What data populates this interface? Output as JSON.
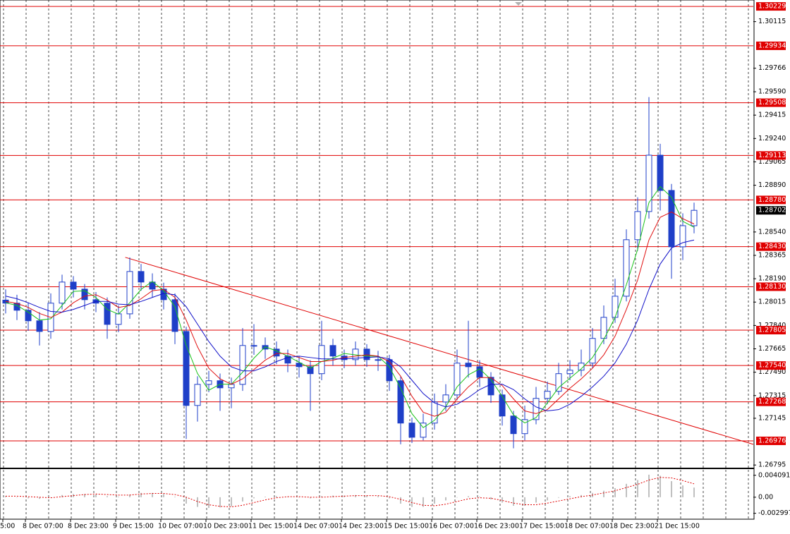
{
  "chart_data": {
    "type": "candlestick",
    "categories": [
      "5:00",
      null,
      "8 Dec 07:00",
      null,
      null,
      null,
      "8 Dec 23:00",
      null,
      null,
      null,
      "9 Dec 15:00",
      null,
      null,
      null,
      "10 Dec 07:00",
      null,
      null,
      null,
      "10 Dec 23:00",
      null,
      null,
      null,
      "11 Dec 15:00",
      null,
      null,
      null,
      "14 Dec 07:00",
      null,
      null,
      null,
      "14 Dec 23:00",
      null,
      null,
      null,
      "15 Dec 15:00",
      null,
      null,
      null,
      "16 Dec 07:00",
      null,
      null,
      null,
      "16 Dec 23:00",
      null,
      null,
      null,
      "17 Dec 15:00",
      null,
      null,
      null,
      "18 Dec 07:00",
      null,
      null,
      null,
      "18 Dec 23:00",
      null,
      null,
      null,
      "21 Dec 15:00",
      null,
      null,
      null
    ],
    "open": [
      1.2803,
      1.28007,
      1.27954,
      1.27875,
      1.27795,
      1.28007,
      1.28165,
      1.28112,
      1.28033,
      1.28007,
      1.27848,
      1.27927,
      1.28244,
      1.28165,
      1.28112,
      1.28033,
      1.27795,
      1.27241,
      1.27399,
      1.27426,
      1.27373,
      1.27399,
      1.2769,
      1.2769,
      1.27663,
      1.27611,
      1.27558,
      1.27531,
      1.27479,
      1.2769,
      1.27611,
      1.27584,
      1.27663,
      1.27584,
      1.27584,
      1.27426,
      1.27109,
      1.27003,
      1.27109,
      1.27267,
      1.2732,
      1.27558,
      1.27531,
      1.27452,
      1.2732,
      1.27162,
      1.2703,
      1.27135,
      1.27294,
      1.27347,
      1.27479,
      1.27505,
      1.27558,
      1.27743,
      1.27901,
      1.28059,
      1.28482,
      1.28693,
      1.29115,
      1.28851,
      1.28429,
      1.28587
    ],
    "high": [
      1.2811,
      1.2807,
      1.2801,
      1.2794,
      1.2808,
      1.2822,
      1.2821,
      1.2815,
      1.2809,
      1.2805,
      1.2799,
      1.2835,
      1.283,
      1.2823,
      1.2816,
      1.2808,
      1.2783,
      1.2746,
      1.275,
      1.2748,
      1.2745,
      1.2782,
      1.2785,
      1.2775,
      1.2772,
      1.2766,
      1.2761,
      1.2758,
      1.27875,
      1.2774,
      1.2766,
      1.2772,
      1.277,
      1.2765,
      1.2762,
      1.2746,
      1.2715,
      1.2718,
      1.2733,
      1.274,
      1.2766,
      1.27875,
      1.2758,
      1.2749,
      1.2736,
      1.272,
      1.2724,
      1.2738,
      1.2742,
      1.2756,
      1.2758,
      1.2766,
      1.2782,
      1.2799,
      1.2819,
      1.2856,
      1.288,
      1.2955,
      1.292,
      1.289,
      1.2868,
      1.2876
    ],
    "low": [
      1.2793,
      1.2788,
      1.278,
      1.2769,
      1.2774,
      1.2796,
      1.2805,
      1.2796,
      1.2794,
      1.2774,
      1.2779,
      1.2789,
      1.281,
      1.2805,
      1.2796,
      1.277,
      1.2699,
      1.2712,
      1.2734,
      1.272,
      1.2722,
      1.2735,
      1.2762,
      1.2759,
      1.2755,
      1.2749,
      1.2745,
      1.272,
      1.2743,
      1.2754,
      1.2752,
      1.2754,
      1.2753,
      1.275,
      1.2735,
      1.2695,
      1.2696,
      1.2698,
      1.2706,
      1.272,
      1.2728,
      1.2745,
      1.2738,
      1.2726,
      1.2709,
      1.2692,
      1.2698,
      1.271,
      1.2725,
      1.2732,
      1.2743,
      1.2746,
      1.2752,
      1.277,
      1.2786,
      1.2802,
      1.284,
      1.2864,
      1.287,
      1.2819,
      1.2833,
      1.2853
    ],
    "close": [
      1.28007,
      1.27954,
      1.27875,
      1.27795,
      1.28007,
      1.28165,
      1.28112,
      1.28033,
      1.28007,
      1.27848,
      1.27927,
      1.28244,
      1.28165,
      1.28112,
      1.28033,
      1.27795,
      1.27241,
      1.27399,
      1.27426,
      1.27373,
      1.27399,
      1.2769,
      1.2769,
      1.27663,
      1.27611,
      1.27558,
      1.27531,
      1.27479,
      1.2769,
      1.27611,
      1.27584,
      1.27663,
      1.27584,
      1.27584,
      1.27426,
      1.27109,
      1.27003,
      1.27109,
      1.27267,
      1.2732,
      1.27558,
      1.27531,
      1.27452,
      1.2732,
      1.27162,
      1.2703,
      1.27135,
      1.27294,
      1.27347,
      1.27479,
      1.27505,
      1.27558,
      1.27743,
      1.27901,
      1.28059,
      1.28482,
      1.28693,
      1.29115,
      1.28851,
      1.28429,
      1.28587,
      1.28702
    ],
    "up_color": "#ffffff",
    "down_color": "#1f3fc8",
    "wick_color": "#1f3fc8",
    "series": [
      {
        "color": "#19c219",
        "values": [
          1.2801,
          1.2799,
          1.2794,
          1.2788,
          1.2789,
          1.2799,
          1.28095,
          1.281,
          1.2805,
          1.2796,
          1.27925,
          1.2801,
          1.2811,
          1.2817,
          1.281,
          1.2798,
          1.2769,
          1.2748,
          1.27355,
          1.274,
          1.274,
          1.2749,
          1.27595,
          1.2768,
          1.2765,
          1.2761,
          1.27565,
          1.2752,
          1.2757,
          1.27595,
          1.2763,
          1.2762,
          1.2761,
          1.2761,
          1.2753,
          1.2737,
          1.2718,
          1.27075,
          1.2713,
          1.2723,
          1.2738,
          1.2747,
          1.27515,
          1.27435,
          1.2731,
          1.2717,
          1.2711,
          1.2715,
          1.2726,
          1.27375,
          1.27445,
          1.27515,
          1.276,
          1.27735,
          1.279,
          1.28145,
          1.2841,
          1.2876,
          1.2888,
          1.288,
          1.2862,
          1.28575
        ]
      },
      {
        "color": "#e01010",
        "values": [
          1.2802,
          1.28005,
          1.27975,
          1.2793,
          1.279,
          1.2794,
          1.2801,
          1.2806,
          1.2807,
          1.2803,
          1.27975,
          1.2799,
          1.2804,
          1.281,
          1.2811,
          1.2805,
          1.2788,
          1.2768,
          1.2752,
          1.2744,
          1.274,
          1.2744,
          1.2751,
          1.2758,
          1.2763,
          1.2763,
          1.276,
          1.2757,
          1.2757,
          1.2758,
          1.276,
          1.2761,
          1.2762,
          1.2761,
          1.2757,
          1.2746,
          1.2731,
          1.2719,
          1.2716,
          1.2719,
          1.2729,
          1.2738,
          1.2745,
          1.2745,
          1.2739,
          1.2729,
          1.272,
          1.2718,
          1.2721,
          1.2729,
          1.2737,
          1.2744,
          1.2752,
          1.2762,
          1.2776,
          1.2796,
          1.2818,
          1.2848,
          1.2865,
          1.2869,
          1.2864,
          1.286
        ]
      },
      {
        "color": "#1010c8",
        "values": [
          1.2806,
          1.2804,
          1.2801,
          1.27975,
          1.27945,
          1.2794,
          1.2796,
          1.2799,
          1.2802,
          1.2802,
          1.28,
          1.27995,
          1.2802,
          1.2805,
          1.2808,
          1.2807,
          1.2798,
          1.2785,
          1.2772,
          1.2761,
          1.2753,
          1.275,
          1.275,
          1.2753,
          1.2757,
          1.276,
          1.2761,
          1.276,
          1.2759,
          1.2759,
          1.2759,
          1.27595,
          1.276,
          1.27605,
          1.2759,
          1.2753,
          1.2743,
          1.2733,
          1.2726,
          1.2723,
          1.2725,
          1.273,
          1.2736,
          1.274,
          1.274,
          1.2736,
          1.2729,
          1.2723,
          1.272,
          1.2721,
          1.2725,
          1.2731,
          1.2738,
          1.2746,
          1.2756,
          1.277,
          1.2788,
          1.2811,
          1.283,
          1.2842,
          1.2846,
          1.2848
        ]
      }
    ],
    "ylim": [
      1.26775,
      1.30277
    ],
    "yticks": [
      1.30115,
      1.29766,
      {
        "value": 1.2959,
        "label": "1.29590"
      },
      1.29415,
      {
        "value": 1.2924,
        "label": "1.29240"
      },
      1.29065,
      {
        "value": 1.2889,
        "label": "1.28890"
      },
      {
        "value": 1.2854,
        "label": "1.28540"
      },
      1.28365,
      {
        "value": 1.2819,
        "label": "1.28190"
      },
      1.28015,
      {
        "value": 1.2784,
        "label": "1.27840"
      },
      1.27665,
      {
        "value": 1.2749,
        "label": "1.27490"
      },
      1.27315,
      1.27145,
      1.26795
    ],
    "levels": [
      1.30229,
      1.29934,
      1.29508,
      1.29113,
      {
        "value": 1.2878,
        "label": "1.28780"
      },
      {
        "value": 1.2843,
        "label": "1.28430"
      },
      {
        "value": 1.2813,
        "label": "1.28130"
      },
      1.27805,
      {
        "value": 1.2754,
        "label": "1.27540"
      },
      1.27268,
      1.26976
    ],
    "level_color": "#e00000",
    "current_price": 1.28702,
    "trendline": {
      "x": [
        10.6,
        66.25
      ],
      "y": [
        1.2835,
        1.2695
      ],
      "color": "#e00000"
    },
    "indicator": {
      "type": "histogram",
      "color": "#c0c0c0",
      "signal_color": "#e00000",
      "values": [
        0.0002,
        0.0,
        -0.0002,
        -0.0003,
        0.0,
        0.0004,
        0.0006,
        0.0006,
        0.0005,
        0.0002,
        0.0001,
        0.0005,
        0.0008,
        0.0008,
        0.0006,
        0.0001,
        -0.0012,
        -0.0018,
        -0.002,
        -0.0019,
        -0.0017,
        -0.0008,
        -0.0002,
        0.0001,
        0.0002,
        0.0001,
        0.0,
        -0.0002,
        0.0002,
        0.0003,
        0.0003,
        0.0004,
        0.0003,
        0.0002,
        -0.0002,
        -0.0012,
        -0.0018,
        -0.0018,
        -0.0012,
        -0.0006,
        0.0,
        0.0002,
        0.0001,
        -0.0004,
        -0.001,
        -0.0016,
        -0.0016,
        -0.001,
        -0.0006,
        -0.0001,
        0.0002,
        0.0004,
        0.0008,
        0.0012,
        0.0017,
        0.0025,
        0.0032,
        0.0042,
        0.004,
        0.003,
        0.0022,
        0.0018
      ],
      "signal": [
        0.0002,
        0.0002,
        0.0001,
        0.0,
        -0.0001,
        0.0001,
        0.0003,
        0.0005,
        0.0006,
        0.0005,
        0.0004,
        0.0004,
        0.0006,
        0.0007,
        0.0007,
        0.0005,
        0.0,
        -0.0008,
        -0.0014,
        -0.0017,
        -0.0018,
        -0.0015,
        -0.001,
        -0.0005,
        -0.0001,
        0.0001,
        0.0001,
        0.0,
        0.0,
        0.0001,
        0.0002,
        0.0003,
        0.0003,
        0.0003,
        0.0001,
        -0.0004,
        -0.001,
        -0.0015,
        -0.0016,
        -0.0013,
        -0.0008,
        -0.0003,
        -0.0001,
        -0.0002,
        -0.0006,
        -0.0011,
        -0.0014,
        -0.0014,
        -0.0011,
        -0.0007,
        -0.0003,
        0.0001,
        0.0004,
        0.0008,
        0.0012,
        0.0018,
        0.0024,
        0.0032,
        0.0037,
        0.0036,
        0.0031,
        0.0025
      ],
      "ylim": [
        -0.003963,
        0.005242
      ],
      "yticks": [
        0.004091,
        {
          "value": 0,
          "label": "0.00"
        },
        -0.002997
      ]
    }
  }
}
